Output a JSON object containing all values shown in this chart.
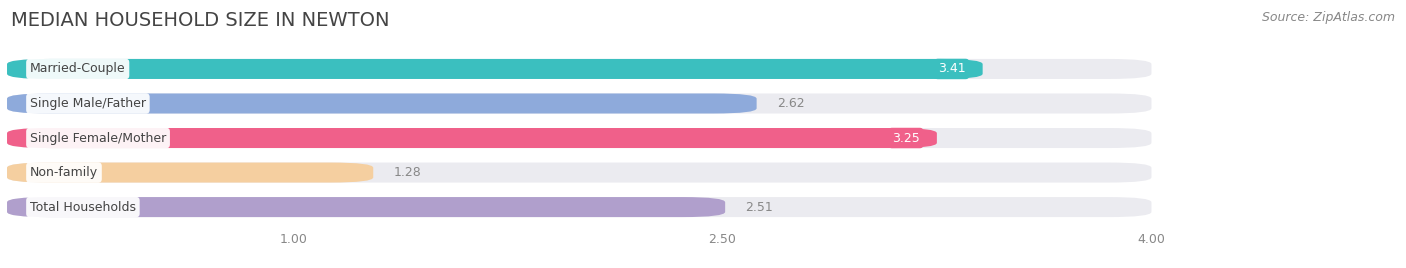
{
  "title": "MEDIAN HOUSEHOLD SIZE IN NEWTON",
  "source": "Source: ZipAtlas.com",
  "categories": [
    "Married-Couple",
    "Single Male/Father",
    "Single Female/Mother",
    "Non-family",
    "Total Households"
  ],
  "values": [
    3.41,
    2.62,
    3.25,
    1.28,
    2.51
  ],
  "bar_colors": [
    "#3bbfbf",
    "#8eaadb",
    "#f0608a",
    "#f5cfa0",
    "#b09fcc"
  ],
  "value_inside": [
    true,
    false,
    true,
    false,
    false
  ],
  "value_text_colors": [
    "#ffffff",
    "#888888",
    "#ffffff",
    "#888888",
    "#888888"
  ],
  "xlim_min": 0.0,
  "xlim_max": 4.3,
  "data_max": 4.0,
  "xticks": [
    1.0,
    2.5,
    4.0
  ],
  "background_color": "#ffffff",
  "bar_track_color": "#ebebf0",
  "title_fontsize": 14,
  "source_fontsize": 9,
  "label_fontsize": 9,
  "value_fontsize": 9
}
